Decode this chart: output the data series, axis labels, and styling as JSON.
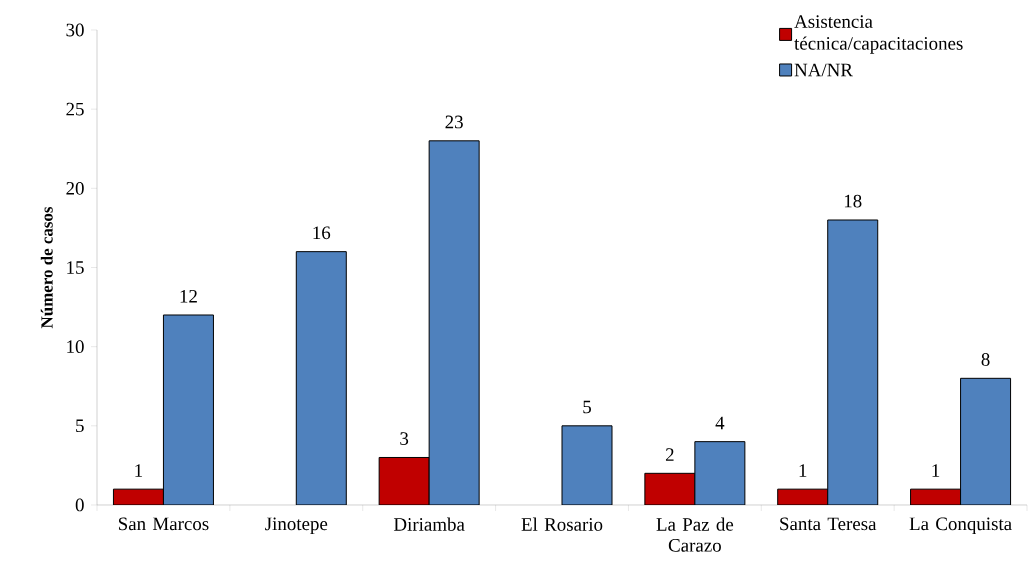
{
  "chart_data": {
    "type": "bar",
    "ylabel": "Número de casos",
    "categories": [
      "San Marcos",
      "Jinotepe",
      "Diriamba",
      "El Rosario",
      "La Paz de Carazo",
      "Santa Teresa",
      "La Conquista"
    ],
    "series": [
      {
        "name": "Asistencia técnica/capacitaciones",
        "color": "#c00000",
        "values": [
          1,
          null,
          3,
          null,
          2,
          1,
          1
        ]
      },
      {
        "name": "NA/NR",
        "color": "#4f81bd",
        "values": [
          12,
          16,
          23,
          5,
          4,
          18,
          8
        ]
      }
    ],
    "ylim": [
      0,
      30
    ],
    "yticks": [
      0,
      5,
      10,
      15,
      20,
      25,
      30
    ],
    "data_labels": true,
    "grid": false,
    "legend": "top right"
  }
}
